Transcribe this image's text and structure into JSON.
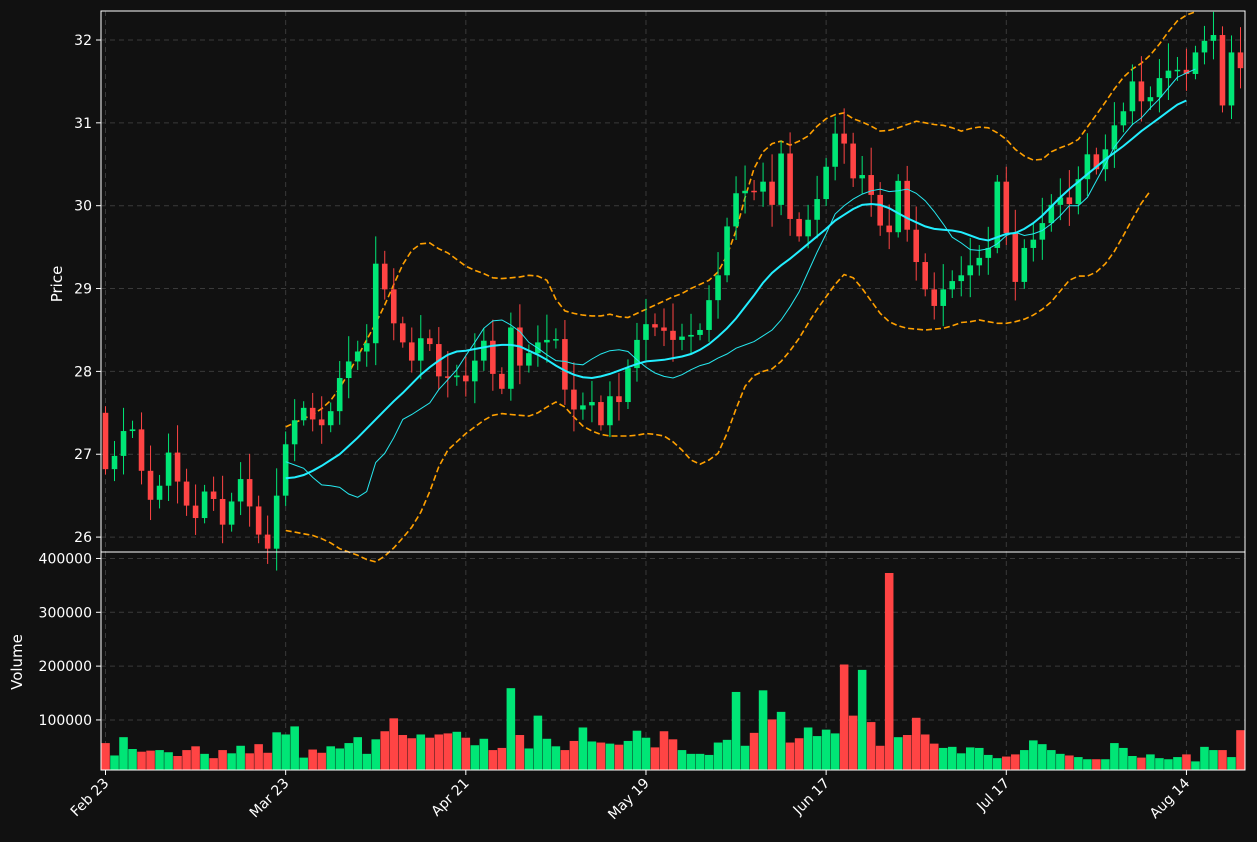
{
  "chart_data": [
    {
      "type": "candlestick",
      "ylabel": "Price",
      "ylim": [
        25.82,
        32.35
      ],
      "yticks": [
        "26",
        "27",
        "28",
        "29",
        "30",
        "31",
        "32"
      ],
      "ytick_values": [
        26,
        27,
        28,
        29,
        30,
        31,
        32
      ],
      "xticks": [
        "Feb 23",
        "Mar 23",
        "Apr 21",
        "May 19",
        "Jun 17",
        "Jul 17",
        "Aug 14"
      ],
      "xtick_index": [
        0,
        20,
        40,
        60,
        80,
        100,
        120
      ],
      "grid": true,
      "colors": {
        "up": "#00e676",
        "down": "#ff4444",
        "ma_short": "#26e8ef",
        "ma_long": "#22eeff",
        "band": "#ffa000",
        "background": "#111111",
        "grid": "#3a3a3a"
      },
      "close": [
        26.82,
        26.98,
        27.28,
        27.3,
        26.8,
        26.45,
        26.62,
        27.02,
        26.67,
        26.38,
        26.23,
        26.55,
        26.46,
        26.15,
        26.43,
        26.7,
        26.37,
        26.03,
        25.86,
        26.5,
        27.12,
        27.41,
        27.56,
        27.42,
        27.35,
        27.52,
        27.92,
        28.12,
        28.24,
        28.34,
        29.3,
        28.99,
        28.58,
        28.35,
        28.13,
        28.4,
        28.33,
        27.94,
        27.93,
        27.95,
        27.88,
        28.13,
        28.37,
        27.97,
        27.79,
        28.53,
        28.07,
        28.22,
        28.35,
        28.38,
        28.39,
        27.78,
        27.54,
        27.59,
        27.63,
        27.35,
        27.7,
        27.63,
        28.04,
        28.38,
        28.57,
        28.53,
        28.49,
        28.38,
        28.42,
        28.44,
        28.5,
        28.86,
        29.16,
        29.75,
        30.15,
        30.18,
        30.17,
        30.29,
        30.01,
        30.63,
        29.84,
        29.63,
        29.83,
        30.08,
        30.47,
        30.87,
        30.75,
        30.33,
        30.37,
        30.13,
        29.76,
        29.68,
        30.3,
        29.71,
        29.32,
        28.99,
        28.79,
        28.99,
        29.09,
        29.16,
        29.28,
        29.37,
        29.49,
        30.29,
        29.67,
        29.08,
        29.49,
        29.59,
        29.79,
        30.01,
        30.1,
        30.02,
        30.32,
        30.62,
        30.44,
        30.68,
        30.97,
        31.14,
        31.5,
        31.26,
        31.31,
        31.54,
        31.63,
        31.64,
        31.59,
        31.85,
        31.99,
        32.06,
        31.21,
        31.85,
        31.66
      ],
      "ma_short": [
        26.91,
        26.87,
        26.83,
        26.72,
        26.63,
        26.62,
        26.6,
        26.52,
        26.48,
        26.55,
        26.9,
        27.01,
        27.2,
        27.42,
        27.48,
        27.55,
        27.62,
        27.78,
        27.9,
        28.02,
        28.19,
        28.35,
        28.52,
        28.61,
        28.62,
        28.56,
        28.48,
        28.35,
        28.28,
        28.2,
        28.13,
        28.12,
        28.09,
        28.08,
        28.15,
        28.21,
        28.25,
        28.26,
        28.24,
        28.14,
        28.05,
        27.98,
        27.94,
        27.92,
        27.96,
        28.02,
        28.07,
        28.1,
        28.16,
        28.21,
        28.28,
        28.32,
        28.36,
        28.43,
        28.5,
        28.62,
        28.78,
        28.96,
        29.2,
        29.44,
        29.66,
        29.9,
        30.0,
        30.08,
        30.14,
        30.18,
        30.2,
        30.17,
        30.18,
        30.2,
        30.15,
        30.06,
        29.93,
        29.78,
        29.62,
        29.55,
        29.47,
        29.46,
        29.48,
        29.54,
        29.64,
        29.68,
        29.64,
        29.66,
        29.7,
        29.78,
        29.88,
        30.0,
        30.0,
        30.1,
        30.3,
        30.5,
        30.71,
        30.85,
        30.98,
        31.06,
        31.18,
        31.29,
        31.42,
        31.55,
        31.6,
        31.65
      ],
      "ma_short_start": 20,
      "ma_long": [
        26.71,
        26.72,
        26.75,
        26.8,
        26.86,
        26.93,
        27.0,
        27.1,
        27.2,
        27.31,
        27.42,
        27.53,
        27.64,
        27.74,
        27.85,
        27.96,
        28.05,
        28.13,
        28.2,
        28.24,
        28.25,
        28.27,
        28.29,
        28.31,
        28.32,
        28.32,
        28.3,
        28.25,
        28.2,
        28.14,
        28.07,
        28.01,
        27.96,
        27.93,
        27.92,
        27.94,
        27.97,
        28.01,
        28.05,
        28.09,
        28.12,
        28.13,
        28.14,
        28.16,
        28.18,
        28.21,
        28.26,
        28.33,
        28.42,
        28.52,
        28.64,
        28.78,
        28.92,
        29.07,
        29.19,
        29.28,
        29.36,
        29.45,
        29.54,
        29.63,
        29.72,
        29.82,
        29.89,
        29.96,
        30.01,
        30.02,
        30.01,
        29.97,
        29.91,
        29.85,
        29.8,
        29.75,
        29.72,
        29.71,
        29.7,
        29.68,
        29.64,
        29.6,
        29.58,
        29.62,
        29.66,
        29.67,
        29.72,
        29.79,
        29.88,
        29.99,
        30.1,
        30.2,
        30.29,
        30.38,
        30.47,
        30.56,
        30.64,
        30.72,
        30.81,
        30.9,
        30.98,
        31.06,
        31.14,
        31.22,
        31.27
      ],
      "ma_long_start": 20,
      "band_upper": [
        27.33,
        27.38,
        27.43,
        27.48,
        27.55,
        27.65,
        27.8,
        27.98,
        28.18,
        28.38,
        28.58,
        28.8,
        29.05,
        29.29,
        29.46,
        29.54,
        29.55,
        29.48,
        29.43,
        29.35,
        29.27,
        29.22,
        29.18,
        29.13,
        29.12,
        29.13,
        29.14,
        29.16,
        29.15,
        29.1,
        28.87,
        28.73,
        28.7,
        28.68,
        28.67,
        28.67,
        28.69,
        28.66,
        28.65,
        28.7,
        28.75,
        28.8,
        28.85,
        28.9,
        28.94,
        29.0,
        29.05,
        29.1,
        29.2,
        29.4,
        29.7,
        30.1,
        30.45,
        30.65,
        30.75,
        30.78,
        30.73,
        30.78,
        30.84,
        30.96,
        31.05,
        31.1,
        31.12,
        31.05,
        31.01,
        30.96,
        30.9,
        30.91,
        30.94,
        30.98,
        31.02,
        31.0,
        30.98,
        30.97,
        30.94,
        30.9,
        30.93,
        30.95,
        30.94,
        30.88,
        30.8,
        30.68,
        30.6,
        30.55,
        30.56,
        30.65,
        30.7,
        30.74,
        30.8,
        30.95,
        31.1,
        31.25,
        31.41,
        31.55,
        31.65,
        31.72,
        31.82,
        31.95,
        32.1,
        32.23,
        32.3,
        32.34
      ],
      "band_upper_start": 20,
      "band_lower": [
        26.08,
        26.06,
        26.04,
        26.02,
        25.98,
        25.93,
        25.86,
        25.82,
        25.78,
        25.73,
        25.7,
        25.77,
        25.87,
        25.99,
        26.12,
        26.3,
        26.55,
        26.85,
        27.05,
        27.15,
        27.25,
        27.33,
        27.41,
        27.47,
        27.49,
        27.48,
        27.47,
        27.46,
        27.5,
        27.57,
        27.63,
        27.57,
        27.45,
        27.34,
        27.28,
        27.24,
        27.22,
        27.22,
        27.22,
        27.23,
        27.25,
        27.24,
        27.22,
        27.15,
        27.05,
        26.93,
        26.88,
        26.93,
        27.01,
        27.25,
        27.55,
        27.82,
        27.95,
        28.0,
        28.03,
        28.12,
        28.25,
        28.4,
        28.58,
        28.75,
        28.9,
        29.05,
        29.17,
        29.13,
        29.0,
        28.85,
        28.7,
        28.6,
        28.55,
        28.52,
        28.51,
        28.5,
        28.51,
        28.52,
        28.55,
        28.59,
        28.6,
        28.62,
        28.6,
        28.58,
        28.58,
        28.6,
        28.63,
        28.68,
        28.75,
        28.84,
        28.97,
        29.1,
        29.15,
        29.15,
        29.2,
        29.3,
        29.45,
        29.64,
        29.84,
        30.03,
        30.18
      ],
      "band_lower_start": 20
    },
    {
      "type": "bar",
      "ylabel": "Volume",
      "ylim": [
        7000,
        412000
      ],
      "yticks": [
        "100000",
        "200000",
        "300000",
        "400000"
      ],
      "ytick_values": [
        100000,
        200000,
        300000,
        400000
      ],
      "volume": [
        57000,
        34000,
        68000,
        46000,
        41000,
        43000,
        44000,
        40000,
        33000,
        44000,
        51000,
        37000,
        29000,
        44000,
        38000,
        52000,
        38000,
        55000,
        39000,
        77000,
        73000,
        88000,
        30000,
        45000,
        39000,
        51000,
        47000,
        57000,
        68000,
        37000,
        64000,
        79000,
        103000,
        72000,
        66000,
        73000,
        67000,
        73000,
        75000,
        78000,
        67000,
        53000,
        65000,
        44000,
        48000,
        159000,
        72000,
        47000,
        108000,
        65000,
        51000,
        44000,
        61000,
        86000,
        60000,
        58000,
        56000,
        54000,
        61000,
        80000,
        67000,
        49000,
        79000,
        64000,
        44000,
        37000,
        37000,
        35000,
        58000,
        63000,
        152000,
        52000,
        76000,
        155000,
        101000,
        115000,
        58000,
        66000,
        86000,
        70000,
        82000,
        75000,
        203000,
        108000,
        193000,
        96000,
        52000,
        373000,
        68000,
        72000,
        104000,
        73000,
        56000,
        48000,
        50000,
        38000,
        49000,
        48000,
        35000,
        29000,
        32000,
        36000,
        44000,
        62000,
        55000,
        44000,
        37000,
        34000,
        31000,
        27000,
        27000,
        27000,
        57000,
        48000,
        33000,
        30000,
        36000,
        29000,
        27000,
        31000,
        36000,
        23000,
        50000,
        44000,
        44000,
        31000,
        81000
      ]
    }
  ]
}
